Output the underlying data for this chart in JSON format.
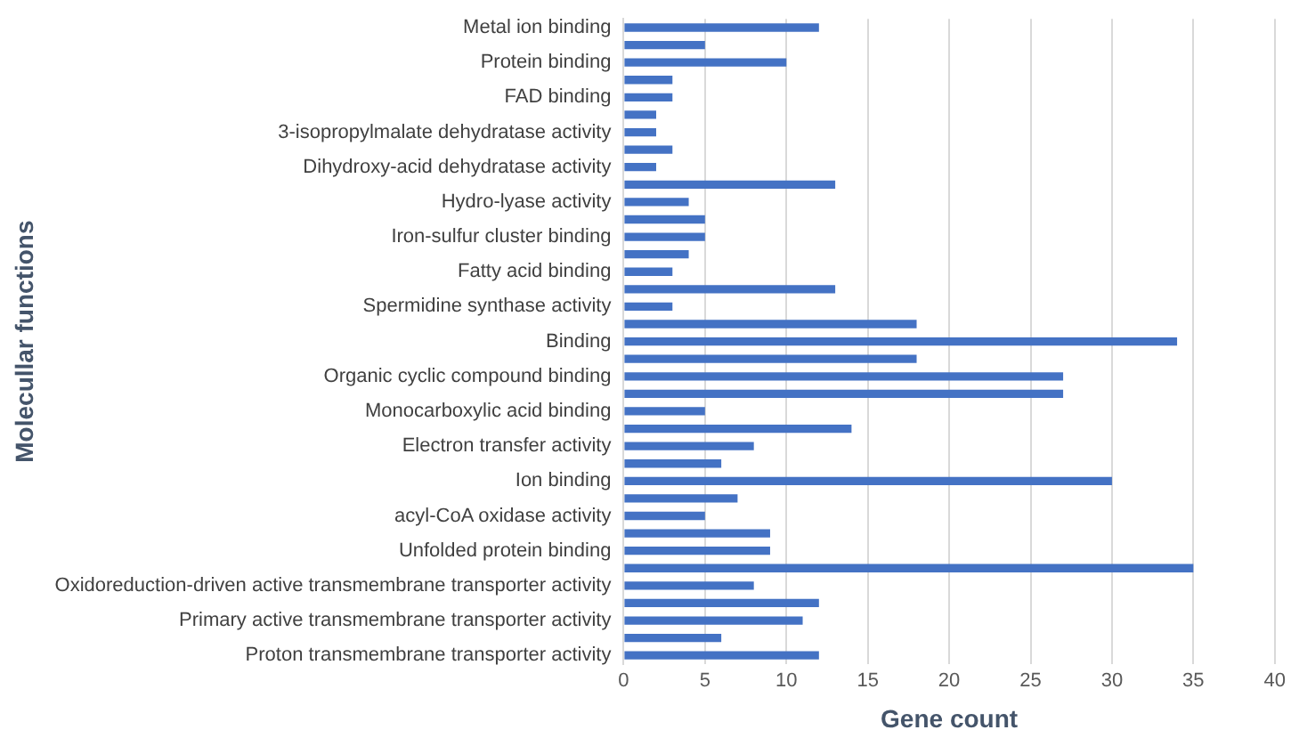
{
  "chart_data": {
    "type": "bar",
    "orientation": "horizontal",
    "xlabel": "Gene count",
    "ylabel": "Molecullar functions",
    "categories": [
      "Metal ion binding",
      null,
      "Protein binding",
      null,
      "FAD binding",
      null,
      "3-isopropylmalate dehydratase activity",
      null,
      "Dihydroxy-acid dehydratase activity",
      null,
      "Hydro-lyase activity",
      null,
      "Iron-sulfur cluster binding",
      null,
      "Fatty acid binding",
      null,
      "Spermidine synthase activity",
      null,
      "Binding",
      null,
      "Organic cyclic compound binding",
      null,
      "Monocarboxylic acid binding",
      null,
      "Electron transfer activity",
      null,
      "Ion binding",
      null,
      "acyl-CoA oxidase activity",
      null,
      "Unfolded protein binding",
      null,
      "Oxidoreduction-driven active transmembrane transporter activity",
      null,
      "Primary active transmembrane transporter activity",
      null,
      "Proton transmembrane transporter activity"
    ],
    "values": [
      12,
      5,
      10,
      3,
      3,
      2,
      2,
      3,
      2,
      13,
      4,
      5,
      5,
      4,
      3,
      13,
      3,
      18,
      34,
      18,
      27,
      27,
      5,
      14,
      8,
      6,
      30,
      7,
      5,
      9,
      9,
      35,
      8,
      12,
      11,
      6,
      12
    ],
    "color": "#4472c4",
    "xlim": [
      0,
      40
    ],
    "xticks": [
      0,
      5,
      10,
      15,
      20,
      25,
      30,
      35,
      40
    ],
    "grid": "x",
    "legend": false
  }
}
